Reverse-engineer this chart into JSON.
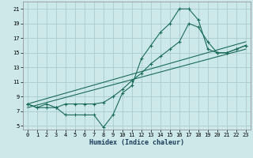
{
  "xlabel": "Humidex (Indice chaleur)",
  "bg_color": "#cce8e8",
  "grid_color": "#aacccc",
  "line_color": "#1a6b5a",
  "ylim": [
    4.5,
    22
  ],
  "xlim": [
    -0.5,
    23.5
  ],
  "yticks": [
    5,
    7,
    9,
    11,
    13,
    15,
    17,
    19,
    21
  ],
  "xticks": [
    0,
    1,
    2,
    3,
    4,
    5,
    6,
    7,
    8,
    9,
    10,
    11,
    12,
    13,
    14,
    15,
    16,
    17,
    18,
    19,
    20,
    21,
    22,
    23
  ],
  "series": [
    {
      "x": [
        0,
        1,
        2,
        3,
        4,
        5,
        6,
        7,
        8,
        9,
        10,
        11,
        12,
        13,
        14,
        15,
        16,
        17,
        18,
        19,
        20,
        21,
        22,
        23
      ],
      "y": [
        8.0,
        7.5,
        7.5,
        7.5,
        6.5,
        6.5,
        6.5,
        6.5,
        4.8,
        6.5,
        9.5,
        10.5,
        14.2,
        16.0,
        17.8,
        19.0,
        21.0,
        21.0,
        19.5,
        15.5,
        15.0,
        15.0,
        15.5,
        16.0
      ],
      "markers": true
    },
    {
      "x": [
        0,
        1,
        2,
        3,
        4,
        5,
        6,
        7,
        8,
        9,
        10,
        11,
        12,
        13,
        14,
        15,
        16,
        17,
        18,
        19,
        20,
        21,
        22,
        23
      ],
      "y": [
        8.0,
        7.5,
        8.0,
        7.5,
        8.0,
        8.0,
        8.0,
        8.0,
        8.2,
        9.0,
        10.0,
        11.2,
        12.2,
        13.5,
        14.5,
        15.5,
        16.5,
        19.0,
        18.5,
        16.5,
        15.0,
        15.0,
        15.5,
        16.0
      ],
      "markers": true
    },
    {
      "x": [
        0,
        23
      ],
      "y": [
        7.5,
        15.5
      ],
      "markers": false
    },
    {
      "x": [
        0,
        23
      ],
      "y": [
        8.0,
        16.5
      ],
      "markers": false
    }
  ]
}
